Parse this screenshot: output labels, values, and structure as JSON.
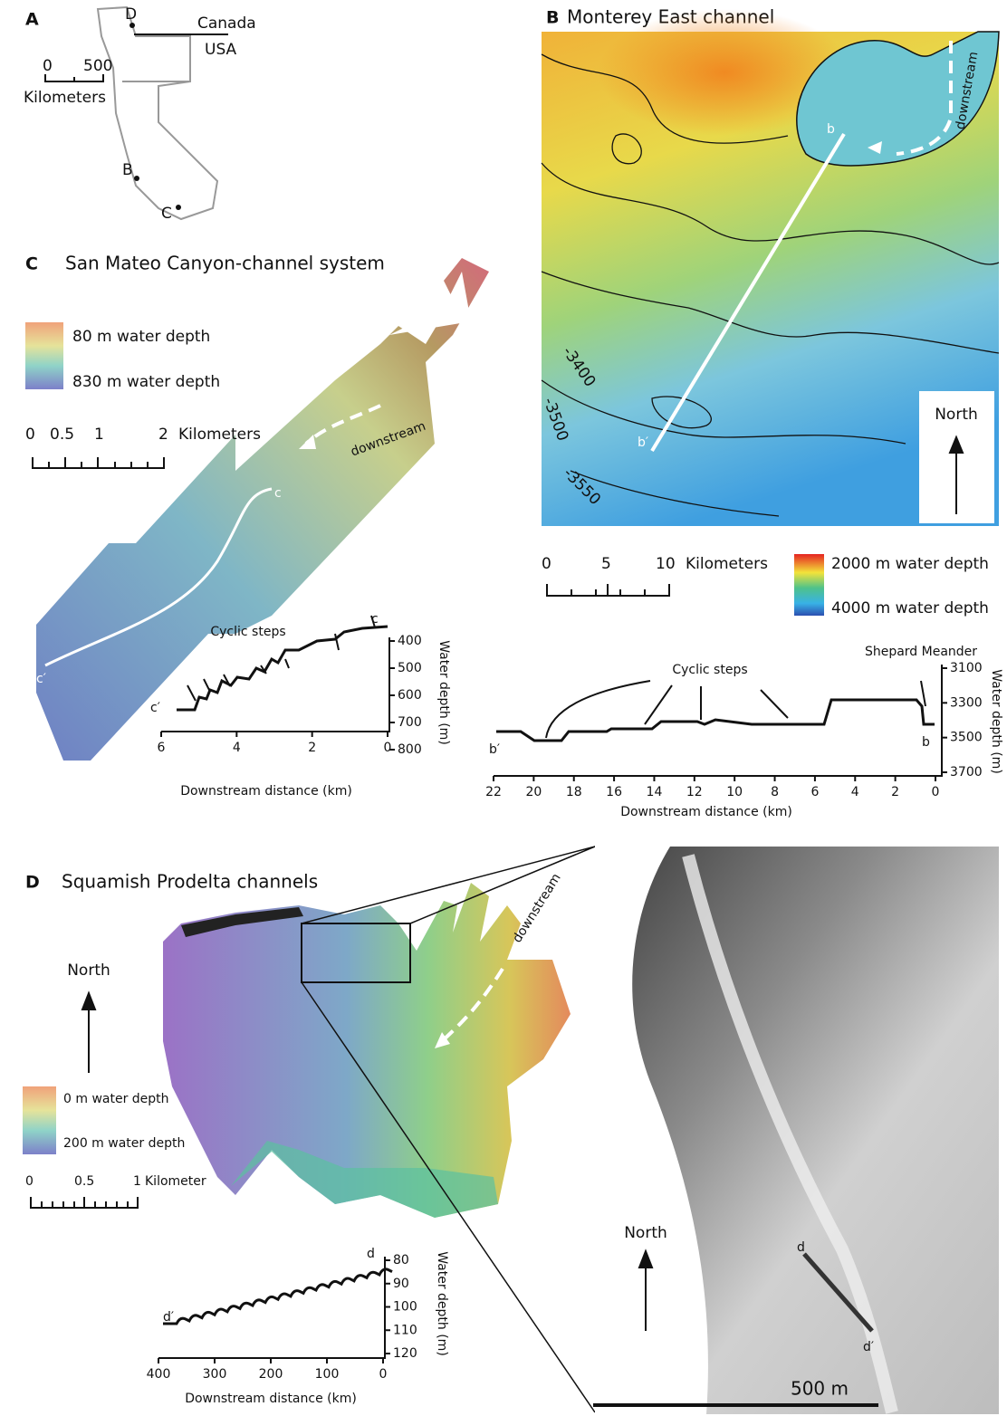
{
  "panel_a": {
    "label": "A",
    "country_north": "Canada",
    "country_south": "USA",
    "sites": [
      "D",
      "B",
      "C"
    ],
    "scale": [
      "0",
      "500"
    ],
    "scale_unit": "Kilometers"
  },
  "panel_b": {
    "label": "B",
    "title": "Monterey East channel",
    "map_ends": [
      "b",
      "b′"
    ],
    "flow": "downstream",
    "contours": [
      "-3400",
      "-3500",
      "-3550"
    ],
    "north": "North",
    "scale": [
      "0",
      "5",
      "10"
    ],
    "scale_unit": "Kilometers",
    "legend": [
      "2000 m water depth",
      "4000 m water depth"
    ],
    "profile": {
      "annotations": [
        "Cyclic steps",
        "Shepard Meander"
      ],
      "ends": [
        "b′",
        "b"
      ],
      "x_ticks": [
        "22",
        "20",
        "18",
        "16",
        "14",
        "12",
        "10",
        "8",
        "6",
        "4",
        "2",
        "0"
      ],
      "y_ticks": [
        "3100",
        "3300",
        "3500",
        "3700"
      ],
      "x_label": "Downstream distance (km)",
      "y_label": "Water depth (m)"
    }
  },
  "panel_c": {
    "label": "C",
    "title": "San Mateo Canyon-channel system",
    "map_ends": [
      "c",
      "c′"
    ],
    "flow": "downstream",
    "legend": [
      "80 m water depth",
      "830 m water depth"
    ],
    "scale": [
      "0",
      "0.5",
      "1",
      "2"
    ],
    "scale_unit": "Kilometers",
    "profile": {
      "annotations": [
        "Cyclic steps"
      ],
      "ends": [
        "c′",
        "c"
      ],
      "x_ticks": [
        "6",
        "4",
        "2",
        "0"
      ],
      "y_ticks": [
        "400",
        "500",
        "600",
        "700",
        "800"
      ],
      "x_label": "Downstream distance (km)",
      "y_label": "Water depth (m)"
    }
  },
  "panel_d": {
    "label": "D",
    "title": "Squamish Prodelta channels",
    "flow": "downstream",
    "north": "North",
    "legend": [
      "0 m water depth",
      "200 m water depth"
    ],
    "scale": [
      "0",
      "0.5",
      "1"
    ],
    "scale_unit": "Kilometer",
    "inset": {
      "map_ends": [
        "d",
        "d′"
      ],
      "north": "North",
      "scale": "500 m"
    },
    "profile": {
      "ends": [
        "d′",
        "d"
      ],
      "x_ticks": [
        "400",
        "300",
        "200",
        "100",
        "0"
      ],
      "y_ticks": [
        "80",
        "90",
        "100",
        "110",
        "120"
      ],
      "x_label": "Downstream distance (km)",
      "y_label": "Water depth (m)"
    }
  }
}
